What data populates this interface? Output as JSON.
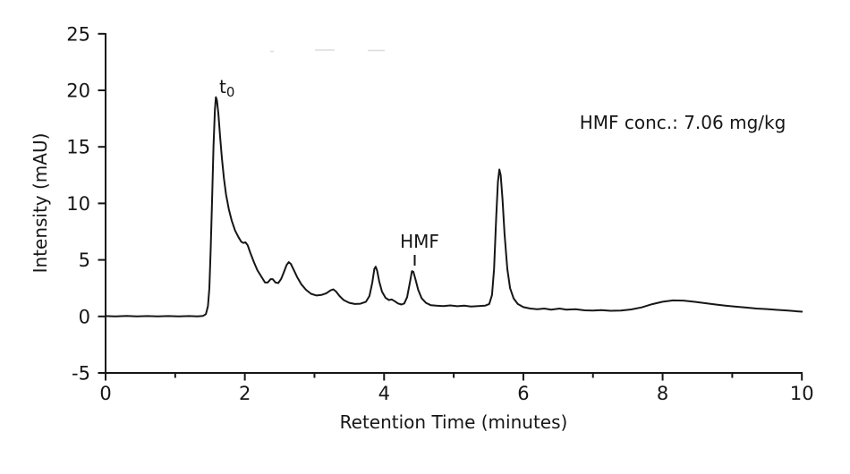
{
  "figure": {
    "background": "#ffffff",
    "trace_color": "#161616",
    "axis_color": "#161616",
    "text_color": "#161616"
  },
  "labels": {
    "x_axis_title": "Retention Time (minutes)",
    "y_axis_title": "Intensity (mAU)",
    "t0_peak": "t",
    "t0_peak_subscript": "0",
    "hmf_peak": "HMF",
    "hmf_concentration": "HMF conc.: 7.06 mg/kg"
  },
  "chart_data": {
    "type": "line",
    "title": "",
    "xlabel": "Retention Time (minutes)",
    "ylabel": "Intensity (mAU)",
    "xlim": [
      0,
      10
    ],
    "ylim": [
      -5,
      25
    ],
    "x_major_ticks": [
      0,
      2,
      4,
      6,
      8,
      10
    ],
    "x_minor_ticks": [
      1,
      3,
      5,
      7,
      9
    ],
    "y_ticks": [
      -5,
      0,
      5,
      10,
      15,
      20,
      25
    ],
    "grid": false,
    "legend": "none",
    "annotations": [
      {
        "text": "t0",
        "type": "peak-label",
        "x_min": 1.63,
        "y_mau": 20.0
      },
      {
        "text": "HMF",
        "type": "peak-label-with-pointer",
        "x_min": 4.51,
        "y_mau": 6.3
      },
      {
        "text": "HMF conc.: 7.06 mg/kg",
        "type": "free-text",
        "x_min": 8.29,
        "y_mau": 16.8
      }
    ],
    "peaks": [
      {
        "label": "t0",
        "retention_time_min": 1.58,
        "intensity_mau": 19.4
      },
      {
        "label": "shoulder",
        "retention_time_min": 2.0,
        "intensity_mau": 6.5
      },
      {
        "label": "",
        "retention_time_min": 2.63,
        "intensity_mau": 4.8
      },
      {
        "label": "",
        "retention_time_min": 3.27,
        "intensity_mau": 2.4
      },
      {
        "label": "",
        "retention_time_min": 3.88,
        "intensity_mau": 4.4
      },
      {
        "label": "HMF",
        "retention_time_min": 4.4,
        "intensity_mau": 4.0
      },
      {
        "label": "",
        "retention_time_min": 5.66,
        "intensity_mau": 13.0
      },
      {
        "label": "broad-hump",
        "retention_time_min": 8.2,
        "intensity_mau": 1.4
      }
    ],
    "series": [
      {
        "name": "chromatogram",
        "points": [
          [
            0.0,
            0.03
          ],
          [
            0.15,
            0.0
          ],
          [
            0.3,
            0.04
          ],
          [
            0.45,
            0.0
          ],
          [
            0.6,
            0.03
          ],
          [
            0.75,
            0.0
          ],
          [
            0.9,
            0.03
          ],
          [
            1.05,
            0.0
          ],
          [
            1.2,
            0.03
          ],
          [
            1.32,
            0.0
          ],
          [
            1.4,
            0.05
          ],
          [
            1.44,
            0.2
          ],
          [
            1.47,
            0.9
          ],
          [
            1.49,
            2.5
          ],
          [
            1.51,
            6.0
          ],
          [
            1.53,
            10.5
          ],
          [
            1.55,
            15.0
          ],
          [
            1.57,
            18.3
          ],
          [
            1.585,
            19.4
          ],
          [
            1.6,
            19.1
          ],
          [
            1.62,
            17.9
          ],
          [
            1.645,
            15.9
          ],
          [
            1.67,
            14.0
          ],
          [
            1.7,
            12.2
          ],
          [
            1.73,
            10.8
          ],
          [
            1.77,
            9.5
          ],
          [
            1.81,
            8.5
          ],
          [
            1.86,
            7.6
          ],
          [
            1.91,
            7.0
          ],
          [
            1.95,
            6.6
          ],
          [
            1.98,
            6.5
          ],
          [
            2.01,
            6.55
          ],
          [
            2.04,
            6.3
          ],
          [
            2.08,
            5.6
          ],
          [
            2.13,
            4.8
          ],
          [
            2.18,
            4.1
          ],
          [
            2.24,
            3.5
          ],
          [
            2.29,
            3.0
          ],
          [
            2.33,
            3.0
          ],
          [
            2.37,
            3.3
          ],
          [
            2.4,
            3.3
          ],
          [
            2.44,
            3.0
          ],
          [
            2.48,
            2.95
          ],
          [
            2.52,
            3.3
          ],
          [
            2.56,
            3.9
          ],
          [
            2.6,
            4.55
          ],
          [
            2.63,
            4.8
          ],
          [
            2.66,
            4.65
          ],
          [
            2.7,
            4.15
          ],
          [
            2.75,
            3.5
          ],
          [
            2.81,
            2.85
          ],
          [
            2.88,
            2.35
          ],
          [
            2.95,
            2.0
          ],
          [
            3.03,
            1.85
          ],
          [
            3.1,
            1.9
          ],
          [
            3.17,
            2.05
          ],
          [
            3.23,
            2.3
          ],
          [
            3.27,
            2.4
          ],
          [
            3.31,
            2.2
          ],
          [
            3.36,
            1.8
          ],
          [
            3.42,
            1.45
          ],
          [
            3.5,
            1.2
          ],
          [
            3.58,
            1.1
          ],
          [
            3.66,
            1.12
          ],
          [
            3.74,
            1.3
          ],
          [
            3.79,
            1.8
          ],
          [
            3.83,
            3.0
          ],
          [
            3.86,
            4.2
          ],
          [
            3.88,
            4.4
          ],
          [
            3.9,
            4.05
          ],
          [
            3.93,
            3.1
          ],
          [
            3.97,
            2.2
          ],
          [
            4.02,
            1.65
          ],
          [
            4.07,
            1.45
          ],
          [
            4.11,
            1.5
          ],
          [
            4.15,
            1.35
          ],
          [
            4.2,
            1.15
          ],
          [
            4.25,
            1.05
          ],
          [
            4.29,
            1.15
          ],
          [
            4.33,
            1.7
          ],
          [
            4.37,
            3.0
          ],
          [
            4.4,
            4.0
          ],
          [
            4.42,
            3.95
          ],
          [
            4.45,
            3.3
          ],
          [
            4.49,
            2.35
          ],
          [
            4.54,
            1.6
          ],
          [
            4.6,
            1.2
          ],
          [
            4.67,
            1.0
          ],
          [
            4.75,
            0.95
          ],
          [
            4.85,
            0.92
          ],
          [
            4.95,
            0.97
          ],
          [
            5.05,
            0.9
          ],
          [
            5.15,
            0.95
          ],
          [
            5.25,
            0.88
          ],
          [
            5.35,
            0.92
          ],
          [
            5.45,
            0.95
          ],
          [
            5.51,
            1.1
          ],
          [
            5.55,
            1.9
          ],
          [
            5.58,
            4.2
          ],
          [
            5.61,
            8.8
          ],
          [
            5.635,
            11.9
          ],
          [
            5.655,
            13.0
          ],
          [
            5.675,
            12.5
          ],
          [
            5.7,
            10.4
          ],
          [
            5.73,
            7.3
          ],
          [
            5.77,
            4.2
          ],
          [
            5.81,
            2.5
          ],
          [
            5.86,
            1.6
          ],
          [
            5.92,
            1.1
          ],
          [
            6.0,
            0.82
          ],
          [
            6.1,
            0.7
          ],
          [
            6.2,
            0.64
          ],
          [
            6.3,
            0.7
          ],
          [
            6.4,
            0.6
          ],
          [
            6.52,
            0.7
          ],
          [
            6.62,
            0.6
          ],
          [
            6.75,
            0.64
          ],
          [
            6.88,
            0.54
          ],
          [
            7.0,
            0.52
          ],
          [
            7.12,
            0.56
          ],
          [
            7.25,
            0.5
          ],
          [
            7.4,
            0.52
          ],
          [
            7.55,
            0.62
          ],
          [
            7.7,
            0.8
          ],
          [
            7.85,
            1.08
          ],
          [
            8.0,
            1.3
          ],
          [
            8.15,
            1.42
          ],
          [
            8.3,
            1.4
          ],
          [
            8.45,
            1.3
          ],
          [
            8.6,
            1.18
          ],
          [
            8.75,
            1.06
          ],
          [
            8.9,
            0.96
          ],
          [
            9.05,
            0.86
          ],
          [
            9.2,
            0.78
          ],
          [
            9.35,
            0.7
          ],
          [
            9.5,
            0.65
          ],
          [
            9.65,
            0.58
          ],
          [
            9.8,
            0.52
          ],
          [
            9.9,
            0.47
          ],
          [
            10.0,
            0.42
          ]
        ]
      }
    ]
  }
}
